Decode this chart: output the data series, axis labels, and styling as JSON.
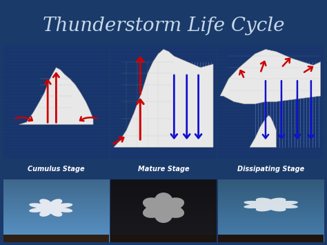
{
  "title": "Thunderstorm Life Cycle",
  "title_color": "#C8D8E8",
  "title_fontsize": 20,
  "background_color": "#1a3a6a",
  "stage_labels": [
    "Cumulus Stage",
    "Mature Stage",
    "Dissipating Stage"
  ],
  "stage_label_bg": "#1a5a1a",
  "stage_label_color": "#FFFFFF",
  "stage_label_fontsize": 7,
  "diagram_bg": "#00008B",
  "cloud_color": "#E8E8E8",
  "updraft_color": "#CC0000",
  "downdraft_color": "#1111CC",
  "rain_color": "#4466AA",
  "rain_line_color": "#8899BB",
  "figsize": [
    4.74,
    3.55
  ],
  "dpi": 100,
  "photo_colors": [
    [
      "#5599CC",
      "#FFFFFF"
    ],
    [
      "#222222",
      "#AAAAAA"
    ],
    [
      "#336699",
      "#DDDDDD"
    ]
  ],
  "cumulus_cloud_x": [
    1.5,
    2.2,
    2.8,
    3.3,
    3.9,
    4.3,
    4.7,
    5.0,
    5.4,
    5.8,
    6.3,
    6.8,
    7.3,
    7.8,
    8.2,
    8.5,
    8.5,
    1.5
  ],
  "cumulus_cloud_y": [
    3.0,
    3.2,
    4.0,
    4.8,
    5.8,
    6.8,
    7.5,
    8.0,
    7.8,
    7.4,
    7.0,
    6.5,
    5.8,
    5.0,
    4.2,
    3.5,
    3.0,
    3.0
  ],
  "mature_cloud_x": [
    0.3,
    0.8,
    1.5,
    2.2,
    3.0,
    3.5,
    4.0,
    4.5,
    5.0,
    5.5,
    6.0,
    7.0,
    8.5,
    9.7,
    9.7,
    5.5,
    4.5,
    3.5,
    2.5,
    1.5,
    0.5,
    0.3
  ],
  "mature_cloud_y": [
    1.0,
    1.5,
    2.5,
    4.0,
    6.0,
    7.5,
    8.5,
    9.2,
    9.6,
    9.4,
    9.0,
    8.6,
    8.0,
    8.3,
    1.0,
    1.0,
    1.0,
    1.0,
    1.0,
    1.0,
    1.0,
    1.0
  ],
  "dissipating_anvil_x": [
    0.2,
    1.0,
    2.0,
    3.0,
    3.5,
    4.5,
    5.5,
    7.0,
    9.0,
    9.7,
    9.7,
    5.5,
    4.5,
    3.5,
    2.5,
    1.5,
    0.5,
    0.2
  ],
  "dissipating_anvil_y": [
    5.5,
    7.0,
    8.0,
    8.8,
    9.2,
    9.6,
    9.4,
    8.8,
    8.2,
    8.5,
    5.5,
    5.0,
    5.0,
    4.8,
    4.8,
    5.0,
    5.5,
    5.5
  ],
  "dissipating_sub_x": [
    3.0,
    3.5,
    4.0,
    4.5,
    4.8,
    5.0,
    5.2,
    5.5,
    5.5,
    3.0
  ],
  "dissipating_sub_y": [
    1.0,
    1.8,
    2.8,
    3.5,
    3.8,
    3.6,
    3.2,
    2.5,
    1.0,
    1.0
  ]
}
